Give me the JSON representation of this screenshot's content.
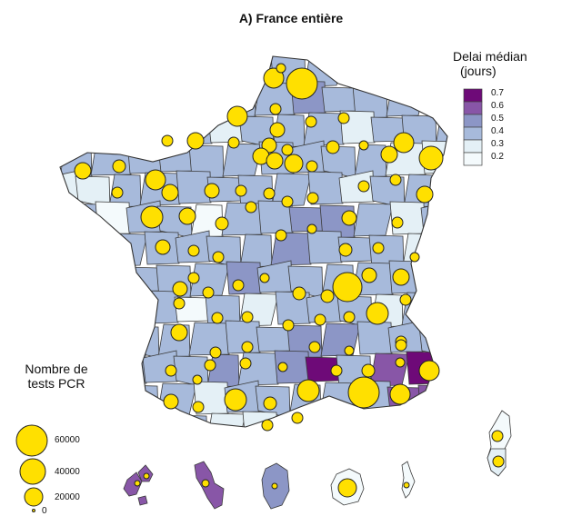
{
  "title": "A) France entière",
  "color_legend": {
    "title_line1": "Delai médian",
    "title_line2": "(jours)",
    "labels": [
      "0.7",
      "0.6",
      "0.5",
      "0.4",
      "0.3",
      "0.2"
    ],
    "colors": [
      "#6E0A78",
      "#8856A7",
      "#8C96C6",
      "#A7BADB",
      "#E4F0F6",
      "#F4FAFC"
    ]
  },
  "size_legend": {
    "title_line1": "Nombre de",
    "title_line2": "tests PCR",
    "labels": [
      "60000",
      "40000",
      "20000",
      "0"
    ],
    "values": [
      60000,
      40000,
      20000,
      0
    ]
  },
  "palette": {
    "bubble": "#FFE000"
  }
}
